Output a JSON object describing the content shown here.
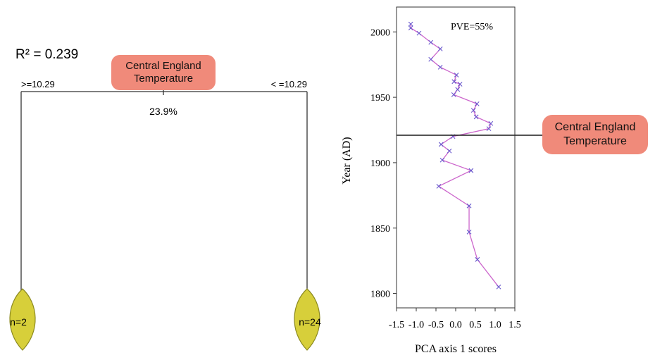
{
  "tree": {
    "r2_label": "R² = 0.239",
    "root_label": "Central England Temperature",
    "left_split": ">=10.29",
    "right_split": "< =10.29",
    "percent": "23.9%",
    "left_leaf": "n=2",
    "right_leaf": "n=24"
  },
  "chart_data": {
    "type": "line",
    "annotation": "PVE=55%",
    "x_label": "PCA axis 1 scores",
    "y_label": "Year (AD)",
    "x": [
      -1.14,
      -1.14,
      -0.93,
      -0.63,
      -0.39,
      -0.63,
      -0.39,
      0.02,
      -0.04,
      0.11,
      0.05,
      -0.05,
      0.54,
      0.45,
      0.52,
      0.89,
      0.84,
      -0.07,
      -0.37,
      -0.16,
      -0.34,
      0.39,
      -0.43,
      0.34,
      0.34,
      0.55,
      1.09
    ],
    "values": [
      2006,
      2003,
      1999,
      1992,
      1987,
      1979,
      1973,
      1967,
      1962,
      1960,
      1956,
      1952,
      1945,
      1940,
      1935,
      1930,
      1926,
      1920,
      1914,
      1909,
      1902,
      1894,
      1882,
      1867,
      1847,
      1826,
      1805
    ],
    "line_color": "#cc66cc",
    "marker_color": "#6a5acd",
    "xlim": [
      -1.5,
      1.5
    ],
    "xticks": [
      -1.5,
      {
        "value": -1,
        "label": "-1.0"
      },
      -0.5,
      {
        "value": 0,
        "label": "0.0"
      },
      0.5,
      {
        "value": 1,
        "label": "1.0"
      },
      1.5
    ],
    "ylim": [
      1789,
      2019
    ],
    "yticks": [
      1800,
      1850,
      1900,
      1950,
      2000
    ],
    "split_year": 1921,
    "split_label": "Central England Temperature"
  }
}
